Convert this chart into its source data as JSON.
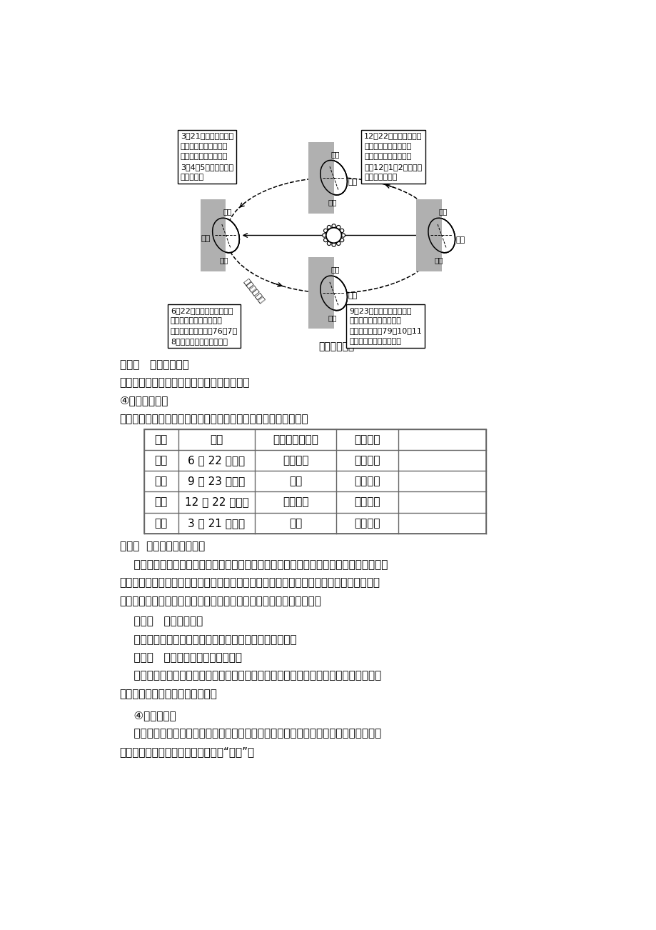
{
  "bg_color": "#ffffff",
  "figure_caption": "地球公转示意",
  "talk_point": "谈重点   地球公转轨道",
  "line1": "地球公转轨道是椭圆形，图示方向为逆时针。",
  "line2": "④昼夜长短变化",
  "line3": "北半球二分二至，太阳直射点位置与昼夜长短情况，如下表所示：",
  "table_headers": [
    "节气",
    "时间",
    "太阳直射点位置",
    "昼夜长短"
  ],
  "table_rows": [
    [
      "夏至",
      "6 月 22 日前后",
      "北回归线",
      "昼长夜短"
    ],
    [
      "秋分",
      "9 月 23 日前后",
      "赤道",
      "昼夜等长"
    ],
    [
      "冬至",
      "12 月 22 日前后",
      "南回归线",
      "昼短夜长"
    ],
    [
      "春分",
      "3 月 21 日前后",
      "赤道",
      "昼夜等长"
    ]
  ],
  "release_point": "释疑点  昼夜长短变化的原因",
  "para1_lines": [
    "    夏至，太阳直射北回归线，北半球昼最长，夜最短，北极圈及其以北地区出现极昼现象，",
    "南极圈及其以南地区出现极夜现象。冬至，太阳直射南回归线，南半球昼最长，夜最短，南",
    "极圈及其以南地区出现极昼现象，北极圈及其以北地区出现极夜现象。"
  ],
  "analyze_rule": "    析规律   太阳直射界线",
  "rule_line": "    太阳直射的最北界线是北回归线，最南界线是南回归线。",
  "distinguish": "    辨误区   南、北半球相反的地理现象",
  "distinguish_lines": [
    "    南、北半球的季节相反；昼夜长短相反；南、北极圈内极昼极夜现象相反，即南极圈内",
    "出现极昼时，北极圈内出现极夜。"
  ],
  "section3": "    ④五带的划分",
  "section3_lines": [
    "    习惯上，人们根据各地获得太阳光热的多少，以及是否有太阳光线的垂直照射、是否有",
    "极昼和极夜现象，将地球表面划分为“五带”。"
  ],
  "box1_text": "3月21日前后，太阳光\n直射在赤道上，这一天\n称为春分。春分前后的\n3、4、5三个月是北半\n球的春季。",
  "box2_text": "12月22日前后，太阳光\n直射在南回归线上，这\n一天称为冬至。冬至前\n后的12、1、2三个月是\n北半球的冬季。",
  "box3_text": "6月22日前后，太阳光直射\n在北回归线上，这一天称\n为夏至。夏至前后的76、7、\n8三个月是北半球的夏季。",
  "box4_text": "9月23日前后，太阳光直射\n在赤道上，这一天称为秋\n分。秋分前后的79、10、11\n三个月是北半球的秋季。",
  "label_spring": "春分",
  "label_summer": "夏至",
  "label_autumn": "秋分",
  "label_winter": "冬至",
  "label_north": "北极",
  "label_south": "南极",
  "label_orbit": "地球公转轨道"
}
